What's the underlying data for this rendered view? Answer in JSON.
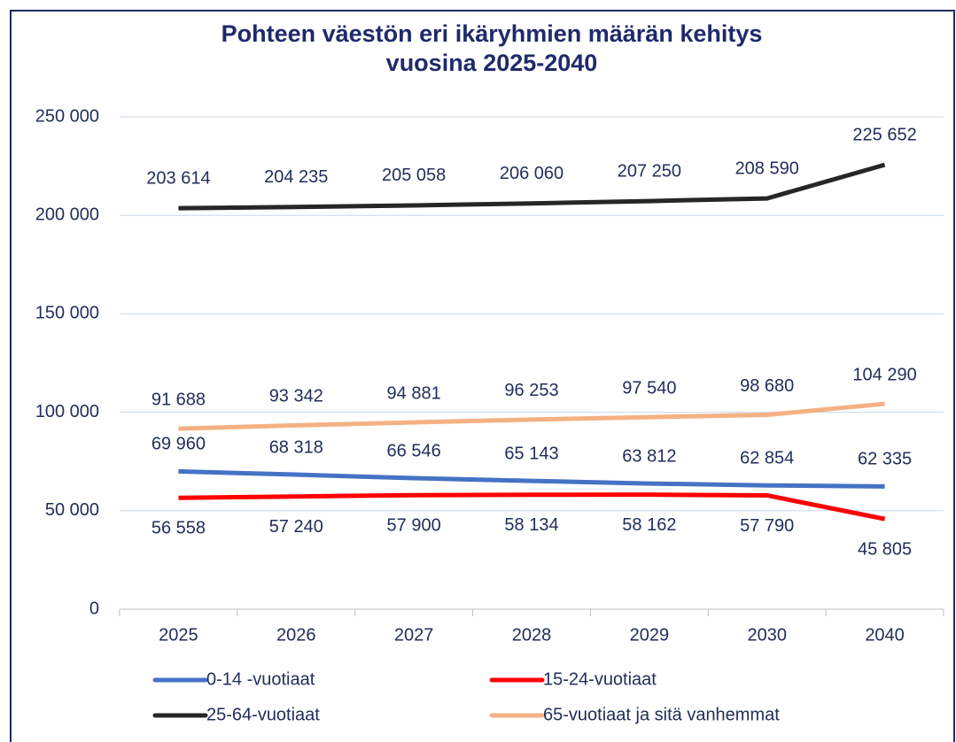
{
  "chart_data": {
    "type": "line",
    "title": [
      "Pohteen väestön eri ikäryhmien määrän kehitys",
      "vuosina 2025-2040"
    ],
    "categories": [
      "2025",
      "2026",
      "2027",
      "2028",
      "2029",
      "2030",
      "2040"
    ],
    "series": [
      {
        "name": "0-14 -vuotiaat",
        "color": "#4472c4",
        "values": [
          69960,
          68318,
          66546,
          65143,
          63812,
          62854,
          62335
        ],
        "value_labels": [
          "69 960",
          "68 318",
          "66 546",
          "65 143",
          "63 812",
          "62 854",
          "62 335"
        ]
      },
      {
        "name": "15-24-vuotiaat",
        "color": "#ff0000",
        "values": [
          56558,
          57240,
          57900,
          58134,
          58162,
          57790,
          45805
        ],
        "value_labels": [
          "56 558",
          "57 240",
          "57 900",
          "58 134",
          "58 162",
          "57 790",
          "45 805"
        ]
      },
      {
        "name": "25-64-vuotiaat",
        "color": "#262626",
        "values": [
          203614,
          204235,
          205058,
          206060,
          207250,
          208590,
          225652
        ],
        "value_labels": [
          "203 614",
          "204 235",
          "205 058",
          "206 060",
          "207 250",
          "208 590",
          "225 652"
        ]
      },
      {
        "name": "65-vuotiaat ja sitä vanhemmat",
        "color": "#f4b183",
        "values": [
          91688,
          93342,
          94881,
          96253,
          97540,
          98680,
          104290
        ],
        "value_labels": [
          "91 688",
          "93 342",
          "94 881",
          "96 253",
          "97 540",
          "98 680",
          "104 290"
        ]
      }
    ],
    "ylim": [
      0,
      250000
    ],
    "yticks": [
      {
        "value": 0,
        "label": "0"
      },
      {
        "value": 50000,
        "label": "50 000"
      },
      {
        "value": 100000,
        "label": "100 000"
      },
      {
        "value": 150000,
        "label": "150 000"
      },
      {
        "value": 200000,
        "label": "200 000"
      },
      {
        "value": 250000,
        "label": "250 000"
      }
    ],
    "grid": true,
    "legend": "bottom"
  }
}
